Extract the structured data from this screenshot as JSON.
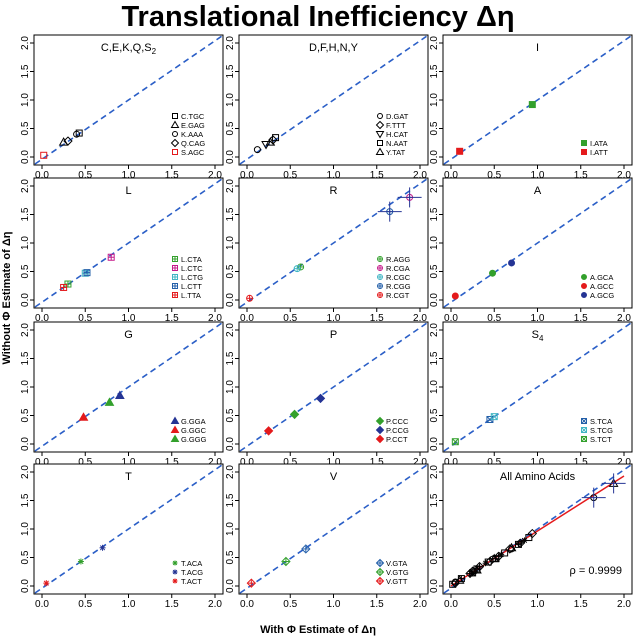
{
  "title": "Translational Inefficiency Δη",
  "xlabel": "With Φ Estimate of Δη",
  "ylabel": "Without Φ Estimate of Δη",
  "chart_data": [
    {
      "type": "scatter",
      "title": "C,E,K,Q,S",
      "title_sub": "2",
      "xlim": [
        0,
        2
      ],
      "ylim": [
        0,
        2
      ],
      "ticks": [
        "0.0",
        "0.5",
        "1.0",
        "1.5",
        "2.0"
      ],
      "grid": false,
      "legend": "bottom-right",
      "series": [
        {
          "name": "C.TGC",
          "marker": "square",
          "color": "#000000",
          "points": [
            [
              0.43,
              0.42
            ]
          ]
        },
        {
          "name": "E.GAG",
          "marker": "triangle",
          "color": "#000000",
          "points": [
            [
              0.25,
              0.26
            ]
          ]
        },
        {
          "name": "K.AAA",
          "marker": "circle",
          "color": "#000000",
          "points": [
            [
              0.4,
              0.4
            ]
          ]
        },
        {
          "name": "Q.CAG",
          "marker": "diamond",
          "color": "#000000",
          "points": [
            [
              0.3,
              0.28
            ]
          ]
        },
        {
          "name": "S.AGC",
          "marker": "square",
          "color": "#e41a1c",
          "points": [
            [
              0.02,
              0.03
            ]
          ]
        }
      ]
    },
    {
      "type": "scatter",
      "title": "D,F,H,N,Y",
      "xlim": [
        0,
        2
      ],
      "ylim": [
        0,
        2
      ],
      "ticks": [
        "0.0",
        "0.5",
        "1.0",
        "1.5",
        "2.0"
      ],
      "grid": false,
      "legend": "bottom-right",
      "series": [
        {
          "name": "D.GAT",
          "marker": "circle",
          "color": "#000000",
          "points": [
            [
              0.12,
              0.13
            ]
          ]
        },
        {
          "name": "F.TTT",
          "marker": "diamond",
          "color": "#000000",
          "points": [
            [
              0.3,
              0.3
            ]
          ]
        },
        {
          "name": "H.CAT",
          "marker": "triangle-down",
          "color": "#000000",
          "points": [
            [
              0.22,
              0.22
            ]
          ]
        },
        {
          "name": "N.AAT",
          "marker": "square",
          "color": "#000000",
          "points": [
            [
              0.33,
              0.34
            ]
          ]
        },
        {
          "name": "Y.TAT",
          "marker": "triangle",
          "color": "#000000",
          "points": [
            [
              0.27,
              0.26
            ]
          ]
        }
      ]
    },
    {
      "type": "scatter",
      "title": "I",
      "xlim": [
        0,
        2
      ],
      "ylim": [
        0,
        2
      ],
      "ticks": [
        "0.0",
        "0.5",
        "1.0",
        "1.5",
        "2.0"
      ],
      "grid": false,
      "legend": "bottom-right",
      "series": [
        {
          "name": "I.ATA",
          "marker": "filled-square",
          "color": "#33a02c",
          "points": [
            [
              0.94,
              0.92
            ]
          ]
        },
        {
          "name": "I.ATT",
          "marker": "filled-square",
          "color": "#e41a1c",
          "points": [
            [
              0.1,
              0.1
            ]
          ]
        }
      ]
    },
    {
      "type": "scatter",
      "title": "L",
      "xlim": [
        0,
        2
      ],
      "ylim": [
        0,
        2
      ],
      "ticks": [
        "0.0",
        "0.5",
        "1.0",
        "1.5",
        "2.0"
      ],
      "grid": false,
      "legend": "bottom-right",
      "series": [
        {
          "name": "L.CTA",
          "marker": "box-plus",
          "color": "#33a02c",
          "points": [
            [
              0.3,
              0.28
            ]
          ]
        },
        {
          "name": "L.CTC",
          "marker": "box-plus",
          "color": "#c51b8a",
          "points": [
            [
              0.8,
              0.75
            ]
          ]
        },
        {
          "name": "L.CTG",
          "marker": "box-plus",
          "color": "#41b6c4",
          "points": [
            [
              0.5,
              0.47
            ]
          ]
        },
        {
          "name": "L.CTT",
          "marker": "box-plus",
          "color": "#225ea8",
          "points": [
            [
              0.52,
              0.48
            ]
          ]
        },
        {
          "name": "L.TTA",
          "marker": "box-plus",
          "color": "#e41a1c",
          "points": [
            [
              0.25,
              0.22
            ]
          ]
        }
      ]
    },
    {
      "type": "scatter",
      "title": "R",
      "xlim": [
        0,
        2
      ],
      "ylim": [
        0,
        2
      ],
      "ticks": [
        "0.0",
        "0.5",
        "1.0",
        "1.5",
        "2.0"
      ],
      "grid": false,
      "legend": "bottom-right",
      "series": [
        {
          "name": "R.AGG",
          "marker": "circle-plus",
          "color": "#33a02c",
          "points": [
            [
              0.62,
              0.58
            ]
          ]
        },
        {
          "name": "R.CGA",
          "marker": "circle-plus",
          "color": "#c51b8a",
          "points": [
            [
              1.88,
              1.8
            ]
          ]
        },
        {
          "name": "R.CGC",
          "marker": "circle-plus",
          "color": "#41b6c4",
          "points": [
            [
              0.58,
              0.55
            ]
          ]
        },
        {
          "name": "R.CGG",
          "marker": "circle-plus",
          "color": "#225ea8",
          "points": [
            [
              1.65,
              1.55
            ]
          ]
        },
        {
          "name": "R.CGT",
          "marker": "circle-plus",
          "color": "#e41a1c",
          "points": [
            [
              0.03,
              0.03
            ]
          ]
        }
      ]
    },
    {
      "type": "scatter",
      "title": "A",
      "xlim": [
        0,
        2
      ],
      "ylim": [
        0,
        2
      ],
      "ticks": [
        "0.0",
        "0.5",
        "1.0",
        "1.5",
        "2.0"
      ],
      "grid": false,
      "legend": "bottom-right",
      "series": [
        {
          "name": "A.GCA",
          "marker": "filled-circle",
          "color": "#33a02c",
          "points": [
            [
              0.48,
              0.47
            ]
          ]
        },
        {
          "name": "A.GCC",
          "marker": "filled-circle",
          "color": "#e41a1c",
          "points": [
            [
              0.05,
              0.07
            ]
          ]
        },
        {
          "name": "A.GCG",
          "marker": "filled-circle",
          "color": "#253494",
          "points": [
            [
              0.7,
              0.65
            ]
          ]
        }
      ]
    },
    {
      "type": "scatter",
      "title": "G",
      "xlim": [
        0,
        2
      ],
      "ylim": [
        0,
        2
      ],
      "ticks": [
        "0.0",
        "0.5",
        "1.0",
        "1.5",
        "2.0"
      ],
      "grid": false,
      "legend": "bottom-right",
      "series": [
        {
          "name": "G.GGA",
          "marker": "filled-triangle",
          "color": "#253494",
          "points": [
            [
              0.9,
              0.85
            ]
          ]
        },
        {
          "name": "G.GGC",
          "marker": "filled-triangle",
          "color": "#e41a1c",
          "points": [
            [
              0.48,
              0.47
            ]
          ]
        },
        {
          "name": "G.GGG",
          "marker": "filled-triangle",
          "color": "#33a02c",
          "points": [
            [
              0.78,
              0.73
            ]
          ]
        }
      ]
    },
    {
      "type": "scatter",
      "title": "P",
      "xlim": [
        0,
        2
      ],
      "ylim": [
        0,
        2
      ],
      "ticks": [
        "0.0",
        "0.5",
        "1.0",
        "1.5",
        "2.0"
      ],
      "grid": false,
      "legend": "bottom-right",
      "series": [
        {
          "name": "P.CCC",
          "marker": "filled-diamond",
          "color": "#33a02c",
          "points": [
            [
              0.55,
              0.52
            ]
          ]
        },
        {
          "name": "P.CCG",
          "marker": "filled-diamond",
          "color": "#253494",
          "points": [
            [
              0.85,
              0.8
            ]
          ]
        },
        {
          "name": "P.CCT",
          "marker": "filled-diamond",
          "color": "#e41a1c",
          "points": [
            [
              0.25,
              0.23
            ]
          ]
        }
      ]
    },
    {
      "type": "scatter",
      "title": "S",
      "title_sub": "4",
      "xlim": [
        0,
        2
      ],
      "ylim": [
        0,
        2
      ],
      "ticks": [
        "0.0",
        "0.5",
        "1.0",
        "1.5",
        "2.0"
      ],
      "grid": false,
      "legend": "bottom-right",
      "series": [
        {
          "name": "S.TCA",
          "marker": "box-x",
          "color": "#225ea8",
          "points": [
            [
              0.45,
              0.43
            ]
          ]
        },
        {
          "name": "S.TCG",
          "marker": "box-x",
          "color": "#41b6c4",
          "points": [
            [
              0.5,
              0.48
            ]
          ]
        },
        {
          "name": "S.TCT",
          "marker": "box-x",
          "color": "#33a02c",
          "points": [
            [
              0.05,
              0.04
            ]
          ]
        }
      ]
    },
    {
      "type": "scatter",
      "title": "T",
      "xlim": [
        0,
        2
      ],
      "ylim": [
        0,
        2
      ],
      "ticks": [
        "0.0",
        "0.5",
        "1.0",
        "1.5",
        "2.0"
      ],
      "grid": false,
      "legend": "bottom-right",
      "series": [
        {
          "name": "T.ACA",
          "marker": "asterisk",
          "color": "#33a02c",
          "points": [
            [
              0.45,
              0.43
            ]
          ]
        },
        {
          "name": "T.ACG",
          "marker": "asterisk",
          "color": "#253494",
          "points": [
            [
              0.7,
              0.67
            ]
          ]
        },
        {
          "name": "T.ACT",
          "marker": "asterisk",
          "color": "#e41a1c",
          "points": [
            [
              0.05,
              0.05
            ]
          ]
        }
      ]
    },
    {
      "type": "scatter",
      "title": "V",
      "xlim": [
        0,
        2
      ],
      "ylim": [
        0,
        2
      ],
      "ticks": [
        "0.0",
        "0.5",
        "1.0",
        "1.5",
        "2.0"
      ],
      "grid": false,
      "legend": "bottom-right",
      "series": [
        {
          "name": "V.GTA",
          "marker": "diamond-plus",
          "color": "#225ea8",
          "points": [
            [
              0.68,
              0.65
            ]
          ]
        },
        {
          "name": "V.GTG",
          "marker": "diamond-plus",
          "color": "#33a02c",
          "points": [
            [
              0.45,
              0.43
            ]
          ]
        },
        {
          "name": "V.GTT",
          "marker": "diamond-plus",
          "color": "#e41a1c",
          "points": [
            [
              0.05,
              0.05
            ]
          ]
        }
      ]
    },
    {
      "type": "scatter",
      "title": "All Amino Acids",
      "xlim": [
        0,
        2
      ],
      "ylim": [
        0,
        2
      ],
      "ticks": [
        "0.0",
        "0.5",
        "1.0",
        "1.5",
        "2.0"
      ],
      "grid": false,
      "annotation": "ρ = 0.9999",
      "fit_line": {
        "color": "#e41a1c",
        "from": [
          0,
          0
        ],
        "to": [
          2,
          1.93
        ]
      },
      "series": [
        {
          "name": "all",
          "marker": "mixed",
          "color": "#000000",
          "points": [
            [
              0.02,
              0.03
            ],
            [
              0.05,
              0.05
            ],
            [
              0.05,
              0.07
            ],
            [
              0.1,
              0.1
            ],
            [
              0.12,
              0.13
            ],
            [
              0.22,
              0.22
            ],
            [
              0.25,
              0.22
            ],
            [
              0.25,
              0.23
            ],
            [
              0.25,
              0.26
            ],
            [
              0.27,
              0.26
            ],
            [
              0.3,
              0.28
            ],
            [
              0.3,
              0.3
            ],
            [
              0.33,
              0.34
            ],
            [
              0.4,
              0.4
            ],
            [
              0.43,
              0.42
            ],
            [
              0.45,
              0.43
            ],
            [
              0.48,
              0.47
            ],
            [
              0.5,
              0.48
            ],
            [
              0.52,
              0.48
            ],
            [
              0.55,
              0.52
            ],
            [
              0.58,
              0.55
            ],
            [
              0.62,
              0.58
            ],
            [
              0.68,
              0.65
            ],
            [
              0.7,
              0.65
            ],
            [
              0.7,
              0.67
            ],
            [
              0.78,
              0.73
            ],
            [
              0.8,
              0.75
            ],
            [
              0.85,
              0.8
            ],
            [
              0.9,
              0.85
            ],
            [
              0.94,
              0.92
            ],
            [
              1.65,
              1.55
            ],
            [
              1.88,
              1.8
            ]
          ]
        }
      ]
    }
  ]
}
